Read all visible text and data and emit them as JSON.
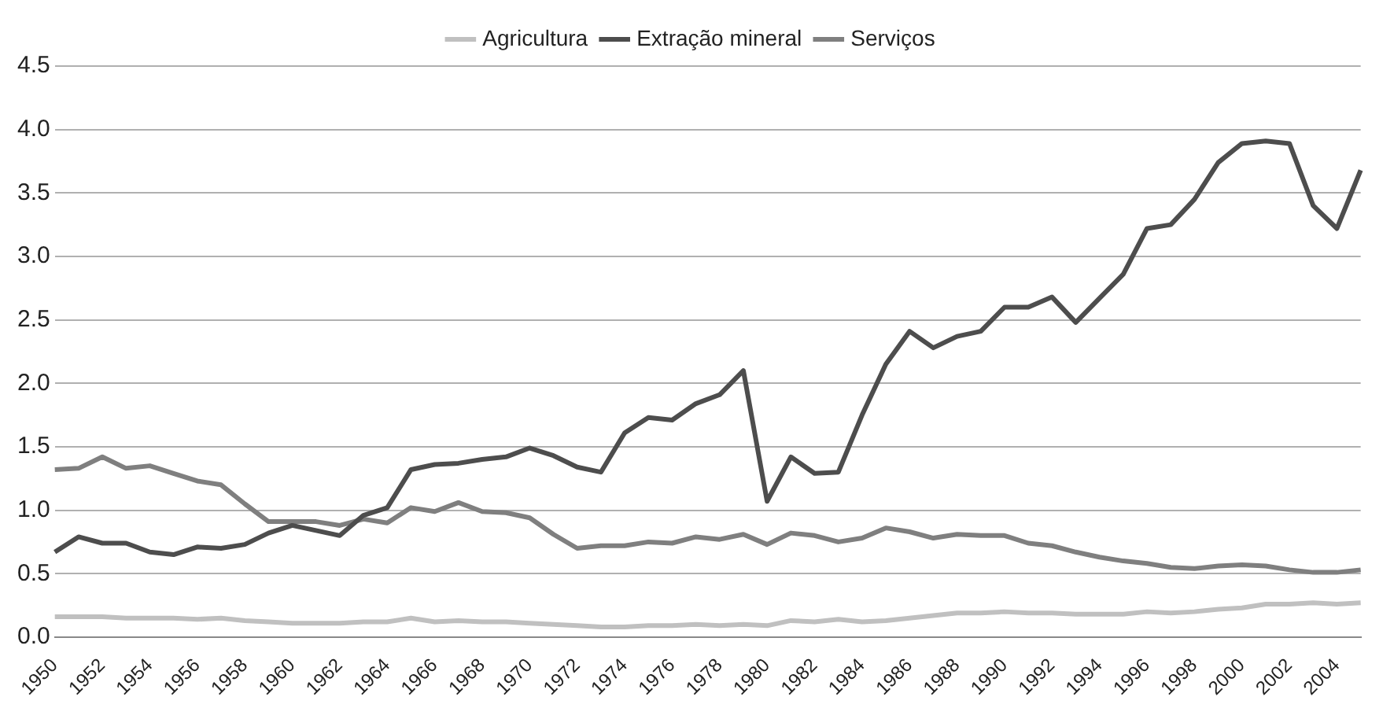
{
  "chart_data": {
    "type": "line",
    "categories": [
      "1950",
      null,
      "1952",
      null,
      "1954",
      null,
      "1956",
      null,
      "1958",
      null,
      "1960",
      null,
      "1962",
      null,
      "1964",
      null,
      "1966",
      null,
      "1968",
      null,
      "1970",
      null,
      "1972",
      null,
      "1974",
      null,
      "1976",
      null,
      "1978",
      null,
      "1980",
      null,
      "1982",
      null,
      "1984",
      null,
      "1986",
      null,
      "1988",
      null,
      "1990",
      null,
      "1992",
      null,
      "1994",
      null,
      "1996",
      null,
      "1998",
      null,
      "2000",
      null,
      "2002",
      null,
      "2004",
      null
    ],
    "series": [
      {
        "name": "Agricultura",
        "color": "#c0c0c0",
        "values": [
          0.16,
          0.16,
          0.16,
          0.15,
          0.15,
          0.15,
          0.14,
          0.15,
          0.13,
          0.12,
          0.11,
          0.11,
          0.11,
          0.12,
          0.12,
          0.15,
          0.12,
          0.13,
          0.12,
          0.12,
          0.11,
          0.1,
          0.09,
          0.08,
          0.08,
          0.09,
          0.09,
          0.1,
          0.09,
          0.1,
          0.09,
          0.13,
          0.12,
          0.14,
          0.12,
          0.13,
          0.15,
          0.17,
          0.19,
          0.19,
          0.2,
          0.19,
          0.19,
          0.18,
          0.18,
          0.18,
          0.2,
          0.19,
          0.2,
          0.22,
          0.23,
          0.26,
          0.26,
          0.27,
          0.26,
          0.27
        ]
      },
      {
        "name": "Extração mineral",
        "color": "#4d4d4d",
        "values": [
          0.67,
          0.79,
          0.74,
          0.74,
          0.67,
          0.65,
          0.71,
          0.7,
          0.73,
          0.82,
          0.88,
          0.84,
          0.8,
          0.96,
          1.02,
          1.32,
          1.36,
          1.37,
          1.4,
          1.42,
          1.49,
          1.43,
          1.34,
          1.3,
          1.61,
          1.73,
          1.71,
          1.84,
          1.91,
          2.1,
          1.07,
          1.42,
          1.29,
          1.3,
          1.75,
          2.15,
          2.41,
          2.28,
          2.37,
          2.41,
          2.6,
          2.6,
          2.68,
          2.48,
          2.67,
          2.86,
          3.22,
          3.25,
          3.45,
          3.74,
          3.89,
          3.91,
          3.89,
          3.4,
          3.22,
          3.68
        ]
      },
      {
        "name": "Serviços",
        "color": "#7f7f7f",
        "values": [
          1.32,
          1.33,
          1.42,
          1.33,
          1.35,
          1.29,
          1.23,
          1.2,
          1.05,
          0.91,
          0.91,
          0.91,
          0.88,
          0.93,
          0.9,
          1.02,
          0.99,
          1.06,
          0.99,
          0.98,
          0.94,
          0.81,
          0.7,
          0.72,
          0.72,
          0.75,
          0.74,
          0.79,
          0.77,
          0.81,
          0.73,
          0.82,
          0.8,
          0.75,
          0.78,
          0.86,
          0.83,
          0.78,
          0.81,
          0.8,
          0.8,
          0.74,
          0.72,
          0.67,
          0.63,
          0.6,
          0.58,
          0.55,
          0.54,
          0.56,
          0.57,
          0.56,
          0.53,
          0.51,
          0.51,
          0.53
        ]
      }
    ],
    "ylim": [
      0,
      4.5
    ],
    "yticks": [
      {
        "value": 0,
        "label": "0.0"
      },
      0.5,
      {
        "value": 1,
        "label": "1.0"
      },
      1.5,
      {
        "value": 2,
        "label": "2.0"
      },
      2.5,
      {
        "value": 3,
        "label": "3.0"
      },
      3.5,
      {
        "value": 4,
        "label": "4.0"
      },
      4.5
    ],
    "grid": "y",
    "legend": "top",
    "marker": "none",
    "line_style": "solid"
  }
}
